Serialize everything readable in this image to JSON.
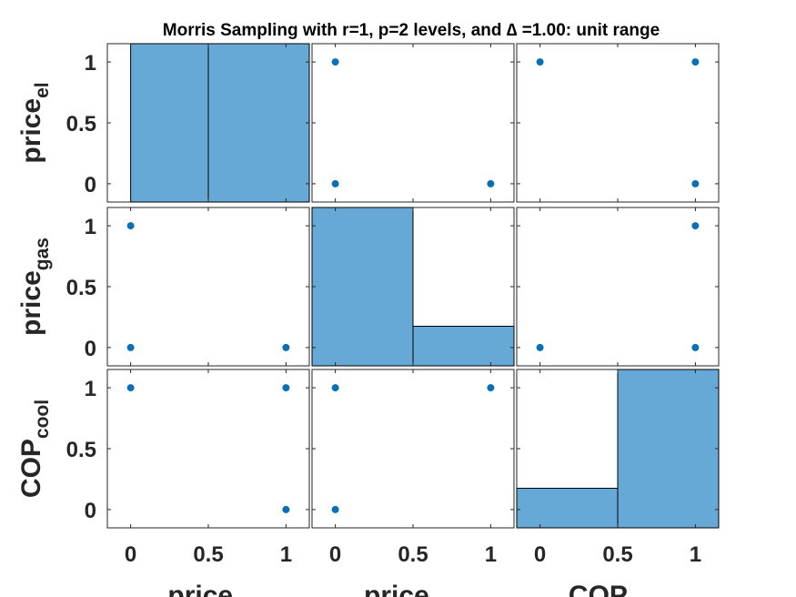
{
  "chart_data": {
    "type": "scatter-matrix",
    "title": "Morris Sampling with r=1, p=2 levels, and ∆ =1.00: unit range",
    "variables": [
      {
        "base": "price",
        "sub": "el"
      },
      {
        "base": "price",
        "sub": "gas"
      },
      {
        "base": "COP",
        "sub": "cool"
      }
    ],
    "x_tick_labels": [
      "0",
      "0.5",
      "1"
    ],
    "y_tick_labels": [
      "1",
      "0.5",
      "0"
    ],
    "ylim": [
      -0.15,
      1.15
    ],
    "xlim": [
      -0.15,
      1.15
    ],
    "diagonal_histograms": [
      {
        "bins": [
          0,
          0.5,
          1.15
        ],
        "heights": [
          1,
          1
        ]
      },
      {
        "bins": [
          -0.15,
          0.5,
          1.15
        ],
        "heights": [
          1,
          0.25
        ]
      },
      {
        "bins": [
          -0.15,
          0.5,
          1.15
        ],
        "heights": [
          0.25,
          1
        ]
      }
    ],
    "points": [
      {
        "row": 0,
        "col": 1,
        "x": [
          0,
          0,
          1
        ],
        "y": [
          1,
          0,
          0
        ]
      },
      {
        "row": 0,
        "col": 2,
        "x": [
          0,
          1,
          1
        ],
        "y": [
          1,
          1,
          0
        ]
      },
      {
        "row": 1,
        "col": 0,
        "x": [
          0,
          0,
          1
        ],
        "y": [
          1,
          0,
          0
        ]
      },
      {
        "row": 1,
        "col": 2,
        "x": [
          1,
          0,
          1
        ],
        "y": [
          1,
          0,
          0
        ]
      },
      {
        "row": 2,
        "col": 0,
        "x": [
          0,
          1,
          1
        ],
        "y": [
          1,
          1,
          0
        ]
      },
      {
        "row": 2,
        "col": 1,
        "x": [
          0,
          1,
          0
        ],
        "y": [
          1,
          1,
          0
        ]
      }
    ],
    "grid": false
  }
}
